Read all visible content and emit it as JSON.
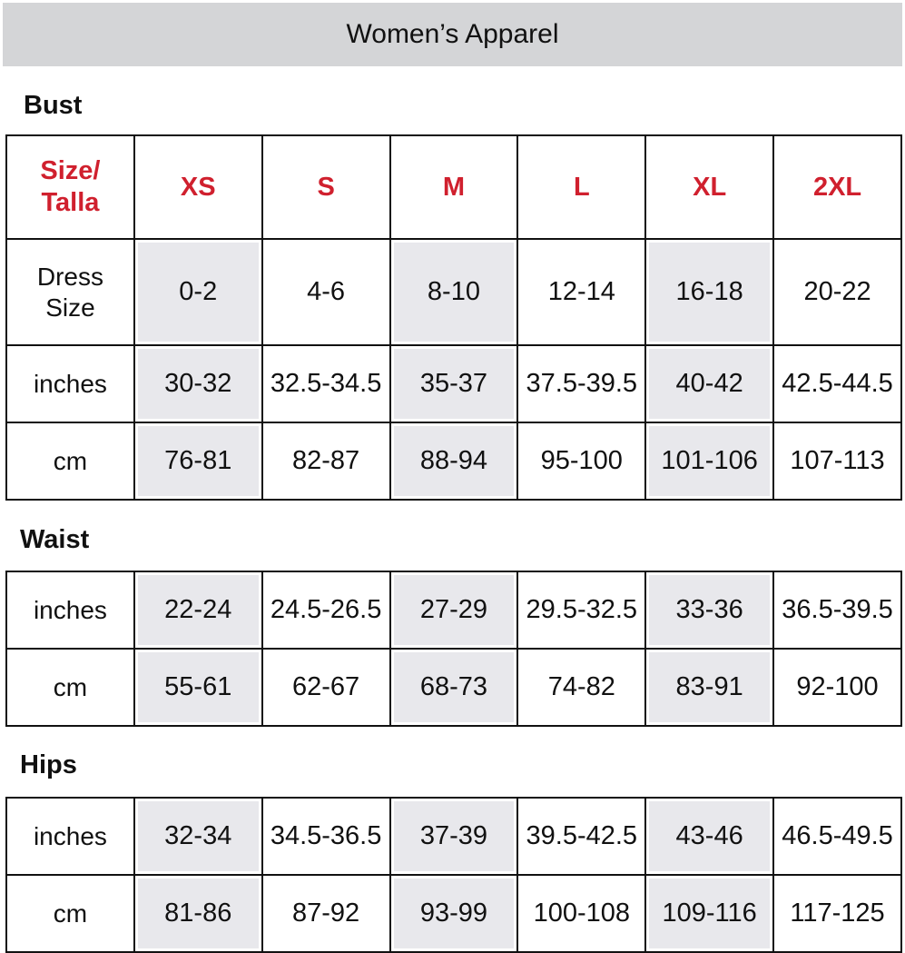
{
  "title": "Women’s Apparel",
  "colors": {
    "header_text": "#d0202e",
    "title_bar": "#d4d5d7",
    "shaded_cell": "#e8e8ec"
  },
  "bust": {
    "label": "Bust",
    "header": [
      "Size/\nTalla",
      "XS",
      "S",
      "M",
      "L",
      "XL",
      "2XL"
    ],
    "rows": [
      [
        "Dress\nSize",
        "0-2",
        "4-6",
        "8-10",
        "12-14",
        "16-18",
        "20-22"
      ],
      [
        "inches",
        "30-32",
        "32.5-34.5",
        "35-37",
        "37.5-39.5",
        "40-42",
        "42.5-44.5"
      ],
      [
        "cm",
        "76-81",
        "82-87",
        "88-94",
        "95-100",
        "101-106",
        "107-113"
      ]
    ]
  },
  "waist": {
    "label": "Waist",
    "rows": [
      [
        "inches",
        "22-24",
        "24.5-26.5",
        "27-29",
        "29.5-32.5",
        "33-36",
        "36.5-39.5"
      ],
      [
        "cm",
        "55-61",
        "62-67",
        "68-73",
        "74-82",
        "83-91",
        "92-100"
      ]
    ]
  },
  "hips": {
    "label": "Hips",
    "rows": [
      [
        "inches",
        "32-34",
        "34.5-36.5",
        "37-39",
        "39.5-42.5",
        "43-46",
        "46.5-49.5"
      ],
      [
        "cm",
        "81-86",
        "87-92",
        "93-99",
        "100-108",
        "109-116",
        "117-125"
      ]
    ]
  }
}
